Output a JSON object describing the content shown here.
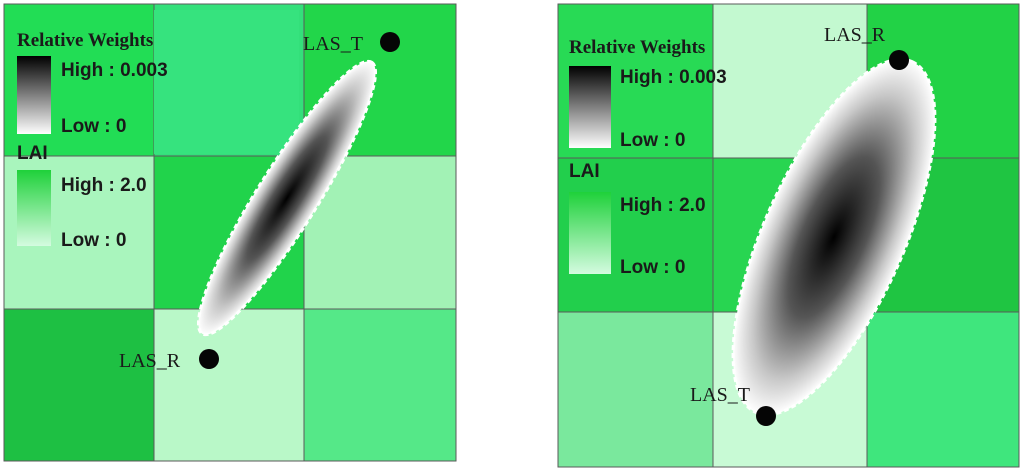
{
  "panels": [
    {
      "cells": [
        [
          "#22dd55",
          "#33e07a",
          "#22d64a"
        ],
        [
          "#a9f5bd",
          "#21d34b",
          "#a2f2b5"
        ],
        [
          "#1ec043",
          "#b9f8c8",
          "#55e888"
        ]
      ],
      "inner_highlight": "#36e37e",
      "sites": [
        {
          "label": "LAS_T"
        },
        {
          "label": "LAS_R"
        }
      ]
    },
    {
      "cells": [
        [
          "#28da55",
          "#c3f9d0",
          "#22d246"
        ],
        [
          "#22cf4c",
          "#28d551",
          "#1fc542"
        ],
        [
          "#7ae89d",
          "#c8fad5",
          "#3fe67d"
        ]
      ],
      "sites": [
        {
          "label": "LAS_R"
        },
        {
          "label": "LAS_T"
        }
      ]
    }
  ],
  "legend": {
    "weights_title": "Relative Weights",
    "weights_high": "High : 0.003",
    "weights_low": "Low : 0",
    "lai_title": "LAI",
    "lai_high": "High : 2.0",
    "lai_low": "Low : 0",
    "weights_color_high": "#000000",
    "weights_color_low": "#ffffff",
    "lai_color_high": "#1fd13a",
    "lai_color_low": "#d4fbe0"
  }
}
